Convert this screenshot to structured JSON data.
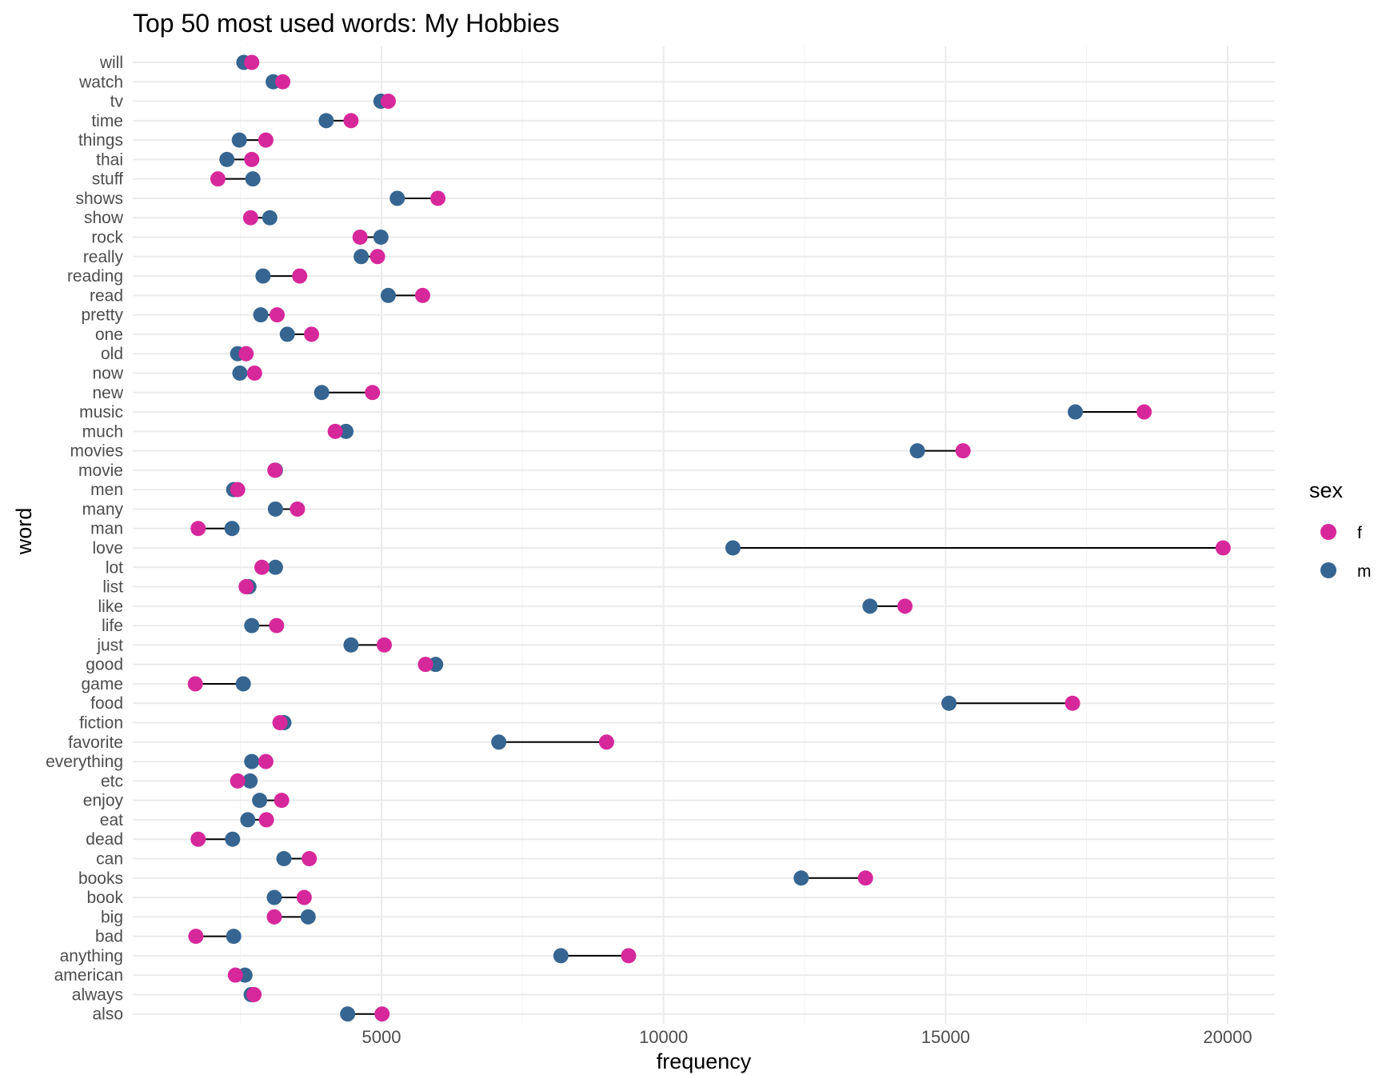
{
  "chart_data": {
    "type": "dumbbell",
    "title": "Top 50 most used words: My Hobbies",
    "xlabel": "frequency",
    "ylabel": "word",
    "xlim": [
      600,
      20900
    ],
    "xticks": [
      5000,
      10000,
      15000,
      20000
    ],
    "xtick_labels": [
      "5000",
      "10000",
      "15000",
      "20000"
    ],
    "grid": true,
    "legend": {
      "title": "sex",
      "position": "right",
      "entries": [
        {
          "label": "f",
          "color": "#d6289b"
        },
        {
          "label": "m",
          "color": "#366591"
        }
      ]
    },
    "categories": [
      "will",
      "watch",
      "tv",
      "time",
      "things",
      "thai",
      "stuff",
      "shows",
      "show",
      "rock",
      "really",
      "reading",
      "read",
      "pretty",
      "one",
      "old",
      "now",
      "new",
      "music",
      "much",
      "movies",
      "movie",
      "men",
      "many",
      "man",
      "love",
      "lot",
      "list",
      "like",
      "life",
      "just",
      "good",
      "game",
      "food",
      "fiction",
      "favorite",
      "everything",
      "etc",
      "enjoy",
      "eat",
      "dead",
      "can",
      "books",
      "book",
      "big",
      "bad",
      "anything",
      "american",
      "always",
      "also"
    ],
    "series": [
      {
        "name": "f",
        "color": "#d6289b",
        "values": [
          2700,
          3250,
          5120,
          4460,
          2950,
          2700,
          2100,
          6000,
          2680,
          4620,
          4930,
          3550,
          5730,
          3150,
          3760,
          2600,
          2750,
          4840,
          18520,
          4180,
          15310,
          3110,
          2450,
          3510,
          1750,
          19920,
          2880,
          2600,
          14280,
          3140,
          5050,
          5780,
          1700,
          17250,
          3200,
          8990,
          2950,
          2450,
          3230,
          2960,
          1750,
          3720,
          13580,
          3630,
          3100,
          1710,
          9380,
          2410,
          2740,
          5010
        ]
      },
      {
        "name": "m",
        "color": "#366591",
        "values": [
          2560,
          3080,
          4990,
          4020,
          2480,
          2260,
          2720,
          5280,
          3020,
          4990,
          4640,
          2900,
          5120,
          2860,
          3330,
          2450,
          2490,
          3940,
          17300,
          4370,
          14500,
          3120,
          2380,
          3120,
          2350,
          11230,
          3120,
          2650,
          13660,
          2700,
          4460,
          5960,
          2550,
          15060,
          3270,
          7080,
          2700,
          2670,
          2840,
          2630,
          2360,
          3270,
          12440,
          3100,
          3700,
          2380,
          8180,
          2580,
          2690,
          4400
        ]
      }
    ]
  }
}
